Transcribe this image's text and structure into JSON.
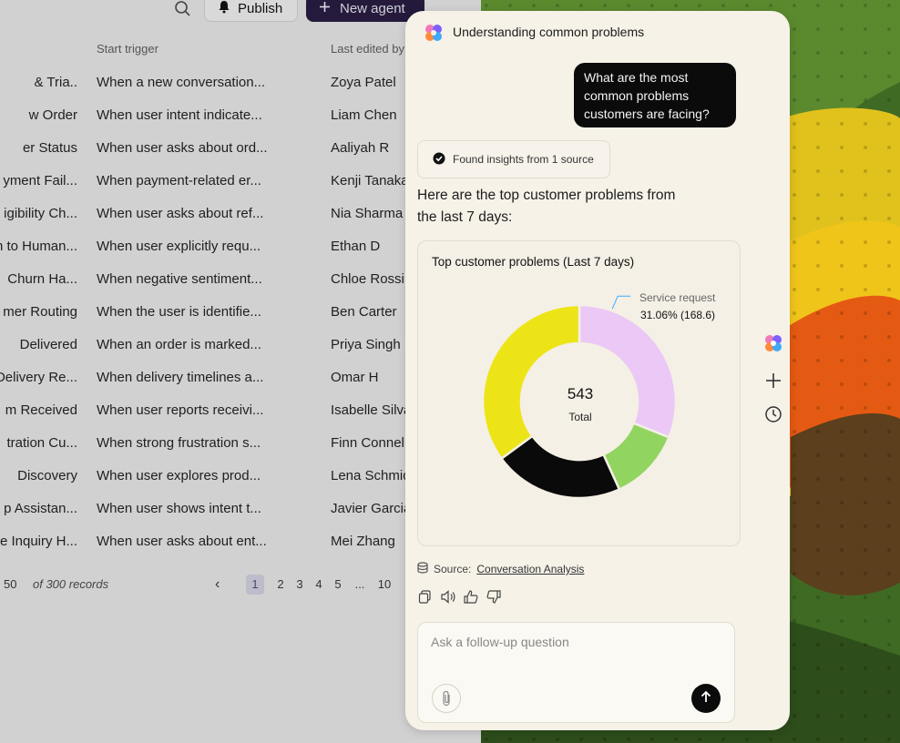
{
  "background_app": {
    "toolbar": {
      "publish_label": "Publish",
      "new_agent_label": "New agent"
    },
    "columns": {
      "start_trigger": "Start trigger",
      "last_edited_by": "Last edited by"
    },
    "rows": [
      {
        "name": "& Tria..",
        "trigger": "When a new conversation...",
        "editor": "Zoya Patel"
      },
      {
        "name": "w Order",
        "trigger": "When user intent indicate...",
        "editor": "Liam Chen"
      },
      {
        "name": "er Status",
        "trigger": "When user asks about ord...",
        "editor": "Aaliyah R"
      },
      {
        "name": "yment Fail...",
        "trigger": "When payment-related er...",
        "editor": "Kenji Tanaka"
      },
      {
        "name": "igibility Ch...",
        "trigger": "When user asks about ref...",
        "editor": "Nia Sharma"
      },
      {
        "name": "n to Human...",
        "trigger": "When user explicitly requ...",
        "editor": "Ethan D"
      },
      {
        "name": "Churn Ha...",
        "trigger": "When negative sentiment...",
        "editor": "Chloe Rossi"
      },
      {
        "name": "mer Routing",
        "trigger": "When the user is identifie...",
        "editor": "Ben Carter"
      },
      {
        "name": "Delivered",
        "trigger": "When an order is marked...",
        "editor": "Priya Singh"
      },
      {
        "name": "Delivery Re...",
        "trigger": "When delivery timelines a...",
        "editor": "Omar H"
      },
      {
        "name": "m Received",
        "trigger": "When user reports receivi...",
        "editor": "Isabelle Silva"
      },
      {
        "name": "tration Cu...",
        "trigger": "When strong frustration s...",
        "editor": "Finn Connel"
      },
      {
        "name": "Discovery",
        "trigger": "When user explores prod...",
        "editor": "Lena Schmid"
      },
      {
        "name": "p Assistan...",
        "trigger": "When user shows intent t...",
        "editor": "Javier Garcia"
      },
      {
        "name": "e Inquiry H...",
        "trigger": "When user asks about ent...",
        "editor": "Mei Zhang"
      }
    ],
    "pagination": {
      "per_page": "50",
      "records": "of 300 records",
      "pages": [
        "1",
        "2",
        "3",
        "4",
        "5",
        "...",
        "10"
      ],
      "active_page": "1"
    }
  },
  "assistant": {
    "title": "Understanding common problems",
    "user_message": "What are the most common problems customers are facing?",
    "source_chip": "Found insights from 1 source",
    "answer": "Here are the top customer problems from the last 7 days:",
    "source_label": "Source:",
    "source_link": "Conversation Analysis",
    "composer_placeholder": "Ask a follow-up question"
  },
  "chart_data": {
    "type": "pie",
    "title": "Top customer problems (Last 7 days)",
    "center_value": "543",
    "center_label": "Total",
    "total": 543,
    "slices": [
      {
        "label": "Service request",
        "value": 168.6,
        "percent": 31.06,
        "color": "#ebc8f5",
        "annotation": "31.06% (168.6)"
      },
      {
        "value": 66,
        "color": "#92d460"
      },
      {
        "value": 118,
        "color": "#0a0a0a"
      },
      {
        "value": 190.4,
        "color": "#ede418"
      }
    ]
  },
  "colors": {
    "panel_bg": "#f6f2e8",
    "accent_dark": "#251a3c",
    "send_button": "#0b0b0b"
  },
  "icons": {
    "search": "search-icon",
    "bell": "bell-icon",
    "plus": "plus-icon",
    "logo": "flower-logo-icon",
    "check": "check-circle-icon",
    "database": "database-icon",
    "copy": "copy-icon",
    "speaker": "speaker-icon",
    "thumbs_up": "thumbs-up-icon",
    "thumbs_down": "thumbs-down-icon",
    "attach": "paperclip-icon",
    "send": "arrow-up-icon",
    "history": "history-icon"
  }
}
